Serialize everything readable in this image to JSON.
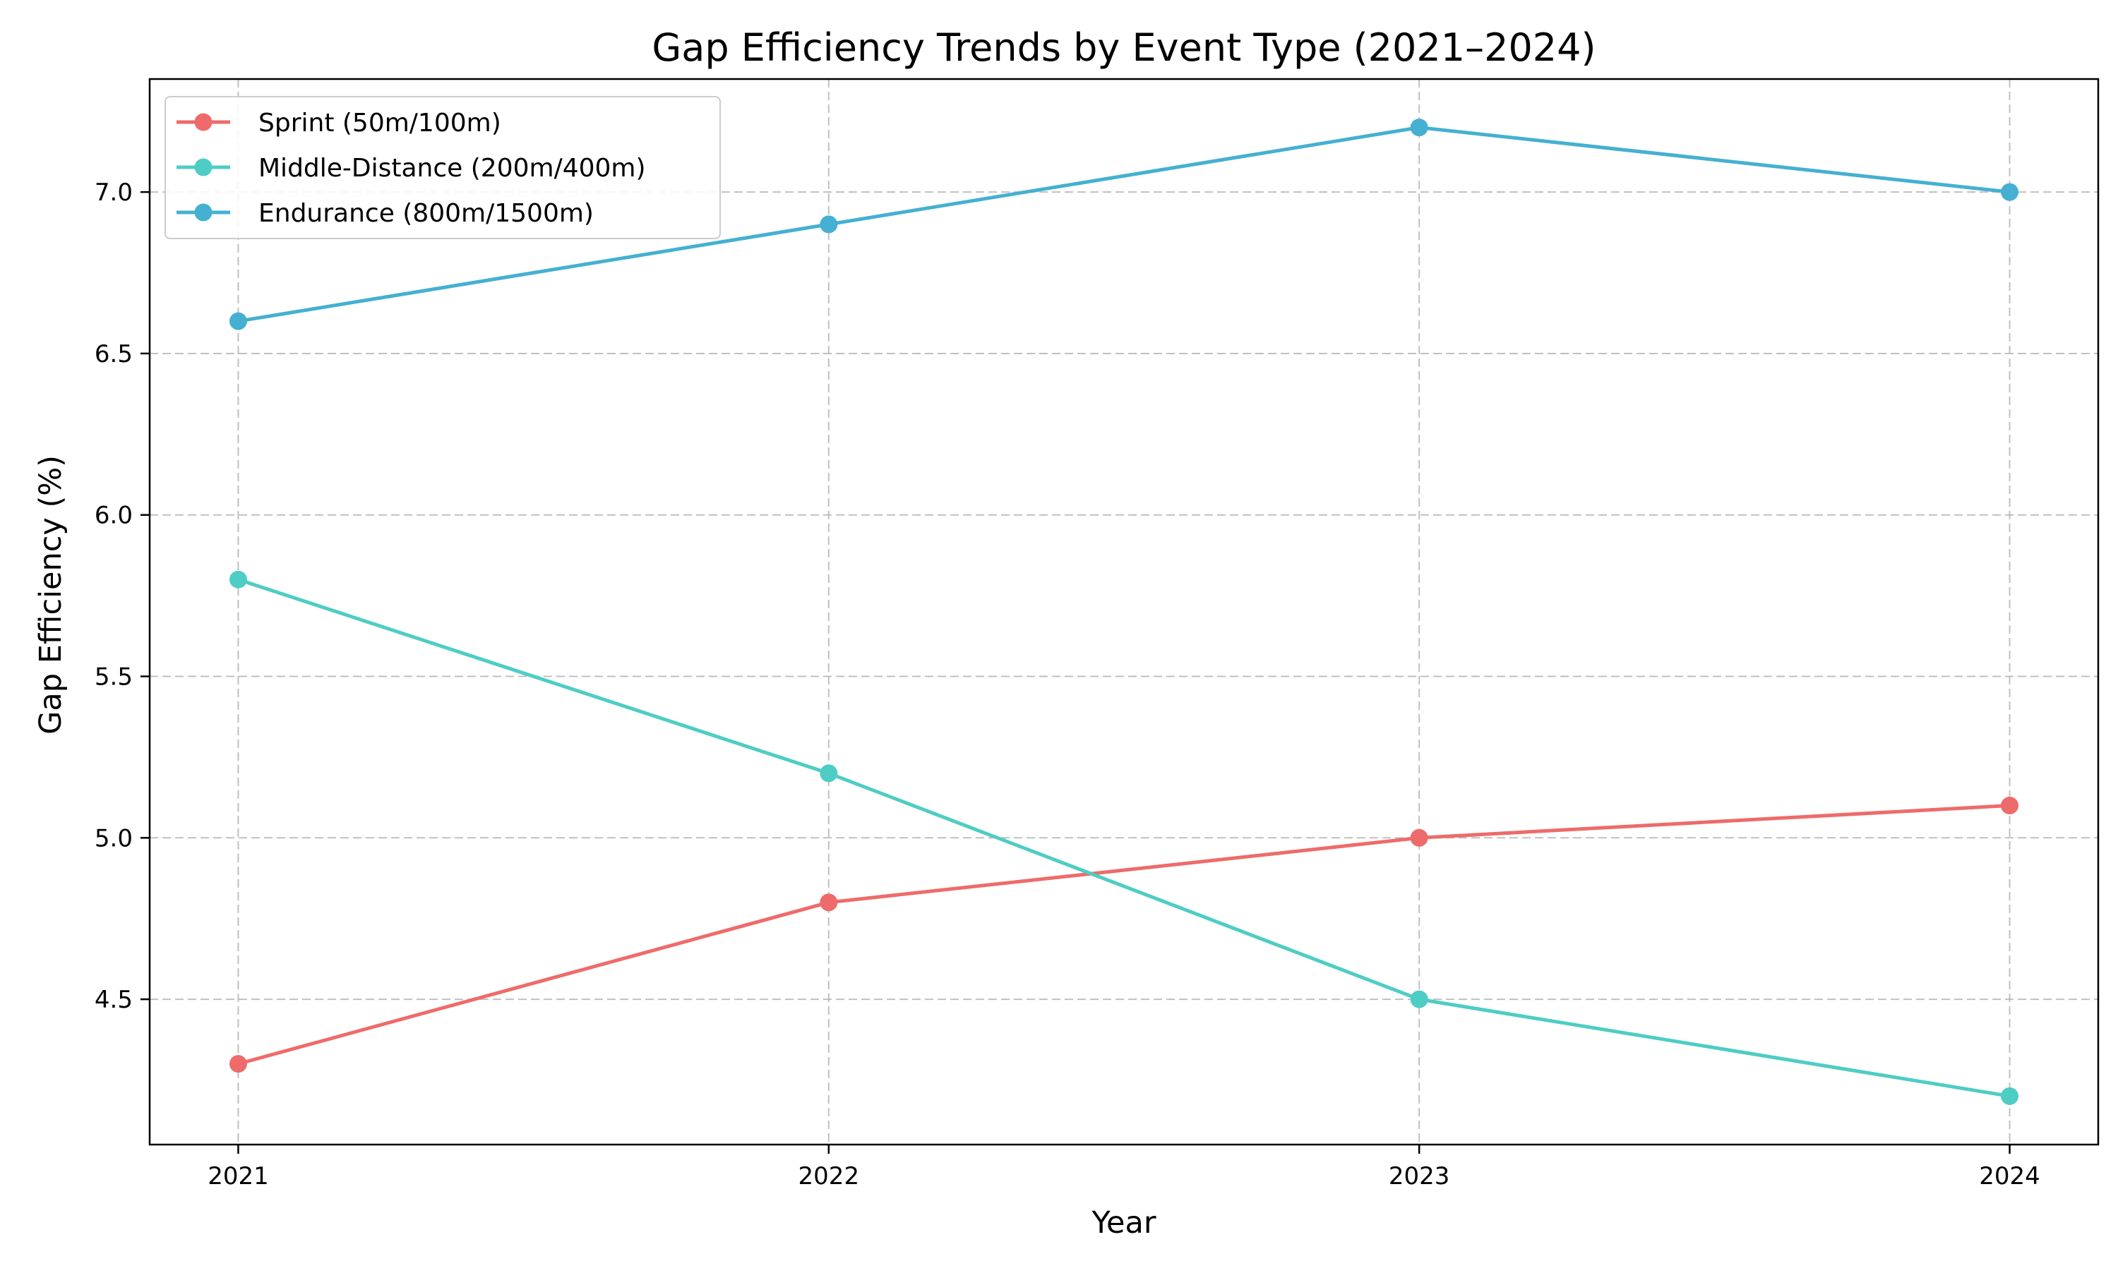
{
  "chart_data": {
    "type": "line",
    "title": "Gap Efficiency Trends by Event Type (2021–2024)",
    "xlabel": "Year",
    "ylabel": "Gap Efficiency (%)",
    "x": [
      "2021",
      "2022",
      "2023",
      "2024"
    ],
    "xlim": [
      2020.85,
      2024.15
    ],
    "ylim": [
      4.05,
      7.35
    ],
    "yticks": [
      "4.5",
      "5.0",
      "5.5",
      "6.0",
      "6.5",
      "7.0"
    ],
    "grid": true,
    "grid_style": "dashed",
    "legend_position": "top-left",
    "series": [
      {
        "name": "Sprint (50m/100m)",
        "color": "#ee6b6b",
        "values": [
          4.3,
          4.8,
          5.0,
          5.1
        ]
      },
      {
        "name": "Middle-Distance (200m/400m)",
        "color": "#4ecdc4",
        "values": [
          5.8,
          5.2,
          4.5,
          4.2
        ]
      },
      {
        "name": "Endurance (800m/1500m)",
        "color": "#45b0d1",
        "values": [
          6.6,
          6.9,
          7.2,
          7.0
        ]
      }
    ]
  }
}
